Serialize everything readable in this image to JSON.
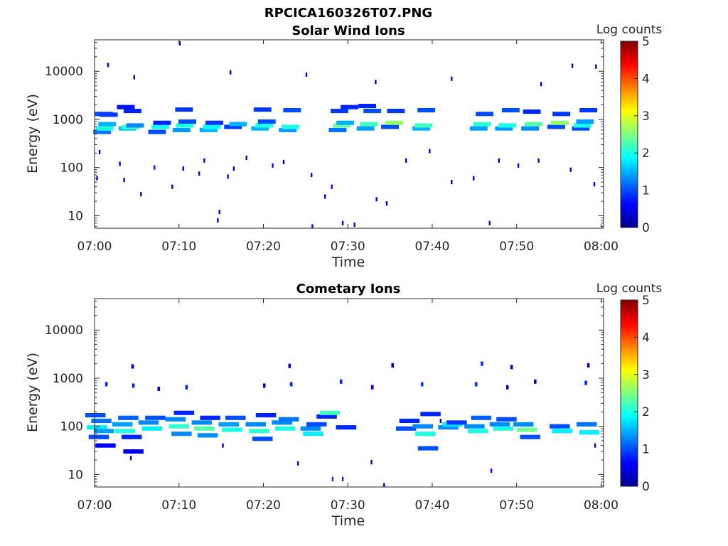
{
  "figure": {
    "title": "RPCICA160326T07.PNG"
  },
  "chart_data": [
    {
      "type": "heatmap",
      "title": "Solar Wind Ions",
      "xlabel": "Time",
      "ylabel": "Energy (eV)",
      "x_tick_labels": [
        "07:00",
        "07:10",
        "07:20",
        "07:30",
        "07:40",
        "07:50",
        "08:00"
      ],
      "x_range_minutes": [
        0,
        60.3
      ],
      "y_tick_labels": [
        "10",
        "100",
        "1000",
        "10000"
      ],
      "y_ticks": [
        10,
        100,
        1000,
        10000
      ],
      "y_scale": "log",
      "y_range": [
        5.5,
        45000
      ],
      "colorbar": {
        "label": "Log counts",
        "range": [
          0,
          5
        ],
        "tick_labels": [
          "0",
          "1",
          "2",
          "3",
          "4",
          "5"
        ],
        "colormap": "jet"
      },
      "points": [
        [
          0.9,
          2.1,
          550,
          1.2
        ],
        [
          1.2,
          2.1,
          650,
          2.0
        ],
        [
          1.5,
          2.1,
          800,
          1.5
        ],
        [
          1.1,
          2.1,
          1300,
          1.0
        ],
        [
          1.7,
          2.1,
          1250,
          0.9
        ],
        [
          3.9,
          2.1,
          650,
          1.6
        ],
        [
          4.3,
          2.1,
          700,
          2.2
        ],
        [
          4.8,
          2.1,
          750,
          1.3
        ],
        [
          4.5,
          2.1,
          1500,
          0.8
        ],
        [
          3.7,
          2.1,
          1800,
          0.7
        ],
        [
          7.4,
          2.1,
          550,
          1.0
        ],
        [
          7.8,
          2.1,
          700,
          1.9
        ],
        [
          8.0,
          2.1,
          850,
          0.8
        ],
        [
          10.3,
          2.1,
          600,
          1.4
        ],
        [
          10.7,
          2.1,
          750,
          2.0
        ],
        [
          11.0,
          2.1,
          900,
          1.0
        ],
        [
          10.6,
          2.1,
          1600,
          0.9
        ],
        [
          13.5,
          2.1,
          600,
          1.5
        ],
        [
          13.9,
          2.1,
          700,
          1.9
        ],
        [
          14.2,
          2.1,
          850,
          0.9
        ],
        [
          16.4,
          2.1,
          700,
          0.9
        ],
        [
          17.0,
          2.1,
          800,
          1.5
        ],
        [
          19.6,
          2.1,
          650,
          1.5
        ],
        [
          20.1,
          2.1,
          750,
          2.0
        ],
        [
          20.4,
          2.1,
          900,
          1.0
        ],
        [
          19.9,
          2.1,
          1600,
          0.9
        ],
        [
          22.9,
          2.1,
          600,
          1.4
        ],
        [
          23.2,
          2.1,
          700,
          2.0
        ],
        [
          23.4,
          2.1,
          1550,
          1.0
        ],
        [
          28.8,
          2.1,
          600,
          1.2
        ],
        [
          29.3,
          2.1,
          750,
          2.4
        ],
        [
          29.7,
          2.1,
          850,
          1.5
        ],
        [
          29.0,
          2.1,
          1500,
          0.9
        ],
        [
          30.2,
          2.1,
          1800,
          0.8
        ],
        [
          32.1,
          2.1,
          650,
          1.4
        ],
        [
          32.5,
          2.1,
          800,
          2.2
        ],
        [
          32.9,
          2.1,
          1500,
          1.0
        ],
        [
          32.3,
          2.1,
          1900,
          0.8
        ],
        [
          35.0,
          2.1,
          700,
          1.0
        ],
        [
          35.5,
          2.1,
          850,
          2.6
        ],
        [
          35.7,
          2.1,
          1500,
          0.9
        ],
        [
          38.7,
          2.1,
          650,
          1.5
        ],
        [
          39.0,
          2.1,
          750,
          2.2
        ],
        [
          39.3,
          2.1,
          1550,
          1.0
        ],
        [
          45.5,
          2.1,
          650,
          1.4
        ],
        [
          45.9,
          2.1,
          800,
          2.1
        ],
        [
          46.2,
          2.1,
          1300,
          1.0
        ],
        [
          48.5,
          2.1,
          650,
          1.4
        ],
        [
          48.9,
          2.1,
          750,
          2.0
        ],
        [
          49.3,
          2.1,
          1550,
          1.0
        ],
        [
          51.6,
          2.1,
          650,
          1.3
        ],
        [
          52.0,
          2.1,
          800,
          2.3
        ],
        [
          51.8,
          2.1,
          1450,
          0.8
        ],
        [
          54.7,
          2.1,
          700,
          1.0
        ],
        [
          55.1,
          2.1,
          850,
          2.6
        ],
        [
          55.3,
          2.1,
          1300,
          0.9
        ],
        [
          57.6,
          2.1,
          650,
          1.0
        ],
        [
          57.8,
          2.1,
          750,
          2.0
        ],
        [
          58.1,
          2.1,
          900,
          1.4
        ],
        [
          58.5,
          2.1,
          1550,
          0.9
        ],
        [
          3.0,
          0.2,
          120,
          0.6
        ],
        [
          3.5,
          0.2,
          55,
          0.4
        ],
        [
          5.5,
          0.2,
          28,
          0.4
        ],
        [
          7.1,
          0.2,
          100,
          0.7
        ],
        [
          9.2,
          0.2,
          40,
          0.4
        ],
        [
          10.5,
          0.2,
          95,
          0.5
        ],
        [
          12.4,
          0.2,
          75,
          0.6
        ],
        [
          13.0,
          0.2,
          140,
          0.4
        ],
        [
          14.6,
          0.2,
          8,
          0.5
        ],
        [
          14.8,
          0.2,
          12,
          0.4
        ],
        [
          15.8,
          0.2,
          65,
          0.5
        ],
        [
          16.5,
          0.2,
          95,
          0.4
        ],
        [
          18.0,
          0.2,
          160,
          0.5
        ],
        [
          21.1,
          0.2,
          110,
          0.7
        ],
        [
          22.4,
          0.2,
          130,
          0.4
        ],
        [
          25.7,
          0.2,
          70,
          0.5
        ],
        [
          25.8,
          0.2,
          6,
          0.6
        ],
        [
          27.3,
          0.2,
          25,
          0.4
        ],
        [
          28.1,
          0.2,
          40,
          0.6
        ],
        [
          29.4,
          0.2,
          7,
          0.5
        ],
        [
          30.8,
          0.2,
          6.5,
          0.6
        ],
        [
          33.4,
          0.2,
          22,
          0.5
        ],
        [
          34.6,
          0.2,
          18,
          0.4
        ],
        [
          36.9,
          0.2,
          140,
          0.4
        ],
        [
          39.7,
          0.2,
          220,
          0.5
        ],
        [
          42.3,
          0.2,
          50,
          0.4
        ],
        [
          44.9,
          0.2,
          60,
          0.5
        ],
        [
          46.8,
          0.2,
          7,
          0.5
        ],
        [
          47.9,
          0.2,
          140,
          0.4
        ],
        [
          50.2,
          0.2,
          110,
          0.6
        ],
        [
          52.6,
          0.2,
          140,
          0.4
        ],
        [
          56.4,
          0.2,
          90,
          0.4
        ],
        [
          59.2,
          0.2,
          45,
          0.5
        ],
        [
          0.6,
          0.2,
          210,
          0.4
        ],
        [
          1.6,
          0.2,
          13500,
          0.4
        ],
        [
          4.7,
          0.2,
          7500,
          0.4
        ],
        [
          10.1,
          0.2,
          38000,
          0.4
        ],
        [
          16.1,
          0.2,
          9500,
          0.3
        ],
        [
          25.1,
          0.2,
          8500,
          0.4
        ],
        [
          33.3,
          0.2,
          6000,
          0.4
        ],
        [
          42.3,
          0.2,
          7000,
          0.4
        ],
        [
          52.9,
          0.2,
          5400,
          0.4
        ],
        [
          56.6,
          0.2,
          13000,
          0.4
        ],
        [
          59.4,
          0.2,
          12500,
          0.4
        ],
        [
          0.3,
          0.2,
          60,
          0.5
        ]
      ]
    },
    {
      "type": "heatmap",
      "title": "Cometary Ions",
      "xlabel": "Time",
      "ylabel": "Energy (eV)",
      "x_tick_labels": [
        "07:00",
        "07:10",
        "07:20",
        "07:30",
        "07:40",
        "07:50",
        "08:00"
      ],
      "x_range_minutes": [
        0,
        60.3
      ],
      "y_tick_labels": [
        "10",
        "100",
        "1000",
        "10000"
      ],
      "y_ticks": [
        10,
        100,
        1000,
        10000
      ],
      "y_scale": "log",
      "y_range": [
        5.5,
        45000
      ],
      "colorbar": {
        "label": "Log counts",
        "range": [
          0,
          5
        ],
        "tick_labels": [
          "0",
          "1",
          "2",
          "3",
          "4",
          "5"
        ],
        "colormap": "jet"
      },
      "points": [
        [
          0.1,
          2.4,
          170,
          1.0
        ],
        [
          0.3,
          2.4,
          95,
          1.8
        ],
        [
          0.5,
          2.4,
          60,
          1.0
        ],
        [
          0.8,
          2.4,
          130,
          1.2
        ],
        [
          1.1,
          2.4,
          80,
          1.4
        ],
        [
          1.3,
          2.4,
          40,
          0.6
        ],
        [
          3.3,
          2.4,
          110,
          1.4
        ],
        [
          3.6,
          2.4,
          80,
          2.0
        ],
        [
          4.0,
          2.4,
          150,
          1.1
        ],
        [
          4.4,
          2.4,
          60,
          0.8
        ],
        [
          4.6,
          2.4,
          30,
          0.5
        ],
        [
          6.4,
          2.4,
          120,
          1.3
        ],
        [
          6.8,
          2.4,
          90,
          1.8
        ],
        [
          7.2,
          2.4,
          150,
          1.0
        ],
        [
          9.6,
          2.4,
          140,
          1.3
        ],
        [
          10.0,
          2.4,
          100,
          2.1
        ],
        [
          10.3,
          2.4,
          70,
          1.3
        ],
        [
          10.6,
          2.4,
          190,
          0.8
        ],
        [
          12.7,
          2.4,
          120,
          1.3
        ],
        [
          13.0,
          2.4,
          90,
          2.3
        ],
        [
          13.4,
          2.4,
          65,
          1.3
        ],
        [
          13.7,
          2.4,
          150,
          0.8
        ],
        [
          15.9,
          2.4,
          110,
          1.4
        ],
        [
          16.3,
          2.4,
          85,
          2.0
        ],
        [
          16.7,
          2.4,
          150,
          1.0
        ],
        [
          19.1,
          2.4,
          110,
          1.3
        ],
        [
          19.5,
          2.4,
          80,
          2.1
        ],
        [
          19.9,
          2.4,
          55,
          1.0
        ],
        [
          20.3,
          2.4,
          170,
          0.8
        ],
        [
          22.2,
          2.4,
          120,
          1.3
        ],
        [
          22.6,
          2.4,
          90,
          2.0
        ],
        [
          23.0,
          2.4,
          140,
          1.2
        ],
        [
          25.6,
          2.4,
          90,
          1.3
        ],
        [
          25.9,
          2.4,
          70,
          1.8
        ],
        [
          26.3,
          2.4,
          110,
          1.0
        ],
        [
          27.5,
          2.4,
          160,
          0.8
        ],
        [
          27.9,
          2.4,
          190,
          2.2
        ],
        [
          29.8,
          2.4,
          95,
          0.8
        ],
        [
          36.9,
          2.4,
          90,
          1.0
        ],
        [
          37.3,
          2.4,
          130,
          0.8
        ],
        [
          38.9,
          2.4,
          100,
          1.3
        ],
        [
          39.2,
          2.4,
          70,
          2.0
        ],
        [
          39.5,
          2.4,
          35,
          1.0
        ],
        [
          39.8,
          2.4,
          180,
          0.8
        ],
        [
          41.9,
          2.4,
          95,
          1.3
        ],
        [
          42.4,
          2.4,
          110,
          1.8
        ],
        [
          42.9,
          2.4,
          120,
          0.9
        ],
        [
          45.0,
          2.4,
          100,
          1.3
        ],
        [
          45.4,
          2.4,
          80,
          2.0
        ],
        [
          45.8,
          2.4,
          150,
          1.1
        ],
        [
          48.0,
          2.4,
          110,
          1.3
        ],
        [
          48.4,
          2.4,
          90,
          2.0
        ],
        [
          48.8,
          2.4,
          140,
          1.0
        ],
        [
          50.8,
          2.4,
          110,
          1.3
        ],
        [
          51.2,
          2.4,
          85,
          2.4
        ],
        [
          51.6,
          2.4,
          60,
          1.0
        ],
        [
          55.1,
          2.4,
          100,
          1.0
        ],
        [
          55.4,
          2.4,
          80,
          1.8
        ],
        [
          58.3,
          2.4,
          110,
          1.2
        ],
        [
          58.6,
          2.4,
          75,
          1.8
        ],
        [
          1.4,
          0.3,
          750,
          0.8
        ],
        [
          4.6,
          0.3,
          700,
          0.8
        ],
        [
          7.6,
          0.3,
          600,
          0.4
        ],
        [
          10.9,
          0.3,
          650,
          0.8
        ],
        [
          20.1,
          0.3,
          700,
          0.4
        ],
        [
          23.3,
          0.3,
          750,
          0.8
        ],
        [
          29.2,
          0.3,
          850,
          0.8
        ],
        [
          32.9,
          0.3,
          650,
          0.4
        ],
        [
          38.8,
          0.3,
          750,
          0.9
        ],
        [
          45.2,
          0.3,
          750,
          0.8
        ],
        [
          48.9,
          0.3,
          650,
          0.4
        ],
        [
          52.2,
          0.3,
          850,
          0.4
        ],
        [
          58.2,
          0.3,
          800,
          0.8
        ],
        [
          4.5,
          0.3,
          1750,
          0.4
        ],
        [
          23.1,
          0.3,
          1800,
          0.4
        ],
        [
          35.3,
          0.3,
          1850,
          0.4
        ],
        [
          45.9,
          0.3,
          2000,
          0.8
        ],
        [
          49.4,
          0.3,
          1700,
          0.4
        ],
        [
          58.5,
          0.3,
          1850,
          0.4
        ],
        [
          28.2,
          0.2,
          8,
          0.8
        ],
        [
          29.4,
          0.2,
          8,
          0.8
        ],
        [
          24.1,
          0.2,
          17,
          0.5
        ],
        [
          32.8,
          0.2,
          18,
          0.4
        ],
        [
          47.0,
          0.2,
          12,
          0.6
        ],
        [
          59.3,
          0.2,
          40,
          0.4
        ],
        [
          34.3,
          0.2,
          6,
          0.4
        ],
        [
          4.3,
          0.2,
          22,
          0.4
        ],
        [
          15.2,
          0.2,
          40,
          0.4
        ],
        [
          41.0,
          0.2,
          130,
          0.3
        ]
      ]
    }
  ]
}
